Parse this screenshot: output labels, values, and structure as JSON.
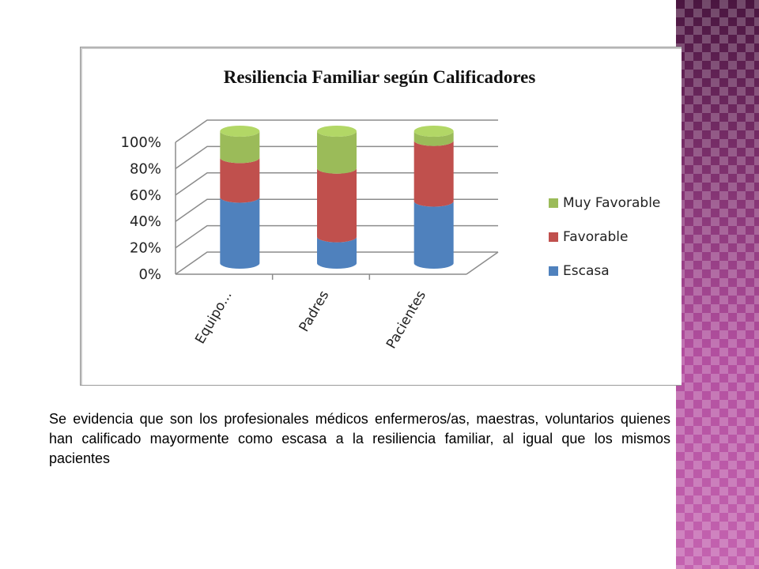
{
  "chart_data": {
    "type": "bar",
    "stacked": true,
    "style": "3d-cylinder",
    "title": "Resiliencia Familiar según Calificadores",
    "categories": [
      "Equipo...",
      "Padres",
      "Pacientes"
    ],
    "series": [
      {
        "name": "Escasa",
        "color": "#4f81bd",
        "values": [
          50,
          20,
          47
        ]
      },
      {
        "name": "Favorable",
        "color": "#c0504d",
        "values": [
          30,
          52,
          46
        ]
      },
      {
        "name": "Muy Favorable",
        "color": "#9bbb59",
        "values": [
          20,
          28,
          7
        ]
      }
    ],
    "y_ticks": [
      "0%",
      "20%",
      "40%",
      "60%",
      "80%",
      "100%"
    ],
    "ylim": [
      0,
      100
    ],
    "grid": true,
    "legend_position": "right"
  },
  "caption": "Se evidencia que son los profesionales médicos enfermeros/as, maestras, voluntarios quienes han calificado mayormente como escasa a la resiliencia familiar, al igual que los mismos pacientes"
}
